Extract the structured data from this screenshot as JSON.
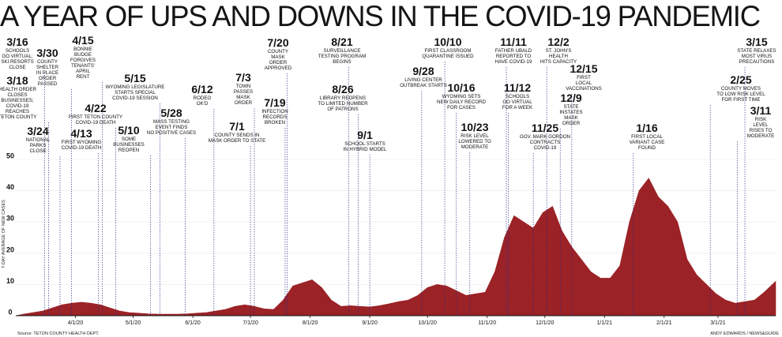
{
  "chart_data": {
    "type": "area",
    "title": "A YEAR OF UPS AND DOWNS IN THE COVID-19 PANDEMIC",
    "ylabel": "7-DAY AVERAGE OF NEW CASES",
    "ylim": [
      0,
      50
    ],
    "yticks": [
      0,
      10,
      20,
      30,
      40,
      50
    ],
    "xlim": [
      "2020-03-01",
      "2021-03-31"
    ],
    "xticks": [
      {
        "date": "2020-04-01",
        "label": "4/1/20"
      },
      {
        "date": "2020-05-01",
        "label": "5/1/20"
      },
      {
        "date": "2020-06-01",
        "label": "6/1/20"
      },
      {
        "date": "2020-07-01",
        "label": "7/1/20"
      },
      {
        "date": "2020-08-01",
        "label": "8/1/20"
      },
      {
        "date": "2020-09-01",
        "label": "9/1/20"
      },
      {
        "date": "2020-10-01",
        "label": "10/1/20"
      },
      {
        "date": "2020-11-01",
        "label": "11/1/20"
      },
      {
        "date": "2020-12-01",
        "label": "12/1/20"
      },
      {
        "date": "2021-01-01",
        "label": "1/1/21"
      },
      {
        "date": "2021-02-01",
        "label": "2/1/21"
      },
      {
        "date": "2021-03-01",
        "label": "3/1/21"
      }
    ],
    "fill_color": "#9b2226",
    "series": [
      {
        "x": [
          "2020-03-01",
          "2020-03-05",
          "2020-03-10",
          "2020-03-15",
          "2020-03-20",
          "2020-03-25",
          "2020-03-30",
          "2020-04-04",
          "2020-04-09",
          "2020-04-14",
          "2020-04-19",
          "2020-04-24",
          "2020-04-29",
          "2020-05-04",
          "2020-05-09",
          "2020-05-14",
          "2020-05-19",
          "2020-05-24",
          "2020-05-29",
          "2020-06-03",
          "2020-06-08",
          "2020-06-13",
          "2020-06-18",
          "2020-06-23",
          "2020-06-28",
          "2020-07-03",
          "2020-07-08",
          "2020-07-13",
          "2020-07-18",
          "2020-07-23",
          "2020-07-28",
          "2020-08-02",
          "2020-08-07",
          "2020-08-12",
          "2020-08-17",
          "2020-08-22",
          "2020-08-27",
          "2020-09-01",
          "2020-09-06",
          "2020-09-11",
          "2020-09-16",
          "2020-09-21",
          "2020-09-26",
          "2020-10-01",
          "2020-10-06",
          "2020-10-11",
          "2020-10-16",
          "2020-10-21",
          "2020-10-26",
          "2020-10-31",
          "2020-11-05",
          "2020-11-10",
          "2020-11-15",
          "2020-11-20",
          "2020-11-25",
          "2020-11-30",
          "2020-12-05",
          "2020-12-10",
          "2020-12-15",
          "2020-12-20",
          "2020-12-25",
          "2020-12-30",
          "2021-01-04",
          "2021-01-09",
          "2021-01-14",
          "2021-01-19",
          "2021-01-24",
          "2021-01-29",
          "2021-02-03",
          "2021-02-08",
          "2021-02-13",
          "2021-02-18",
          "2021-02-23",
          "2021-02-28",
          "2021-03-05",
          "2021-03-10",
          "2021-03-15",
          "2021-03-20",
          "2021-03-25",
          "2021-03-31"
        ],
        "values": [
          0,
          0.5,
          1,
          1.5,
          2.5,
          3.5,
          4,
          4.3,
          4,
          3.5,
          2.5,
          1.5,
          1,
          0.8,
          0.6,
          0.5,
          0.5,
          0.5,
          0.6,
          0.8,
          1,
          1.5,
          2,
          3,
          3.5,
          3,
          2.2,
          2,
          5,
          9.5,
          10.5,
          11.5,
          9,
          5,
          3,
          3.2,
          3,
          2.8,
          3.2,
          3.8,
          4.5,
          5,
          6.5,
          9,
          10,
          9.5,
          8,
          6.5,
          7,
          7.5,
          14,
          25,
          32,
          30,
          28,
          33,
          35,
          27,
          22,
          18,
          14,
          12,
          12,
          16,
          30,
          40,
          44,
          38,
          35,
          30,
          18,
          13,
          10,
          7,
          5,
          4,
          4.5,
          5,
          7.5,
          11
        ]
      }
    ],
    "annotations": [
      {
        "date": "3/16",
        "text": [
          "SCHOOLS",
          "GO VIRTUAL;",
          "SKI RESORTS",
          "CLOSE"
        ]
      },
      {
        "date": "3/18",
        "text": [
          "HEALTH ORDER",
          "CLOSES",
          "BUSINESSES;",
          "COVID-19",
          "REACHES",
          "TETON COUNTY"
        ]
      },
      {
        "date": "3/24",
        "text": [
          "NATIONAL",
          "PARKS",
          "CLOSE"
        ]
      },
      {
        "date": "3/30",
        "text": [
          "COUNTY",
          "SHELTER",
          "IN PLACE",
          "ORDER",
          "PASSED"
        ]
      },
      {
        "date": "4/13",
        "text": [
          "FIRST WYOMING",
          "COVID-19 DEATH"
        ]
      },
      {
        "date": "4/15",
        "text": [
          "BONNIE",
          "BUDGE",
          "FORGIVES",
          "TENANTS'",
          "APRIL",
          "RENT"
        ]
      },
      {
        "date": "4/22",
        "text": [
          "FIRST TETON COUNTY",
          "COVID-19 DEATH"
        ]
      },
      {
        "date": "5/10",
        "text": [
          "SOME",
          "BUSINESSES",
          "REOPEN"
        ]
      },
      {
        "date": "5/15",
        "text": [
          "WYOMING LEGISLATURE",
          "STARTS SPECIAL",
          "COVID-19 SESSION"
        ]
      },
      {
        "date": "5/28",
        "text": [
          "MASS TESTING",
          "EVENT FINDS",
          "NO POSITIVE CASES"
        ]
      },
      {
        "date": "6/12",
        "text": [
          "RODEO",
          "OK'D"
        ]
      },
      {
        "date": "7/1",
        "text": [
          "COUNTY SENDS IN",
          "MASK ORDER TO STATE"
        ]
      },
      {
        "date": "7/3",
        "text": [
          "TOWN",
          "PASSES",
          "MASK",
          "ORDER"
        ]
      },
      {
        "date": "7/19",
        "text": [
          "INFECTION",
          "RECORDS",
          "BROKEN"
        ]
      },
      {
        "date": "7/20",
        "text": [
          "COUNTY",
          "MASK",
          "ORDER",
          "APPROVED"
        ]
      },
      {
        "date": "8/21",
        "text": [
          "SURVEILLANCE",
          "TESTING PROGRAM",
          "BEGINS"
        ]
      },
      {
        "date": "8/26",
        "text": [
          "LIBRARY REOPENS",
          "TO LIMITED NUMBER",
          "OF PATRONS"
        ]
      },
      {
        "date": "9/1",
        "text": [
          "SCHOOL STARTS",
          "IN HYBRID MODEL"
        ]
      },
      {
        "date": "9/28",
        "text": [
          "LIVING CENTER",
          "OUTBREAK STARTS"
        ]
      },
      {
        "date": "10/10",
        "text": [
          "FIRST CLASSROOM",
          "QUARANTINE ISSUED"
        ]
      },
      {
        "date": "10/16",
        "text": [
          "WYOMING SETS",
          "NEW DAILY RECORD",
          "FOR CASES"
        ]
      },
      {
        "date": "10/23",
        "text": [
          "RISK LEVEL",
          "LOWERED TO",
          "MODERATE"
        ]
      },
      {
        "date": "11/11",
        "text": [
          "FATHER UBALD",
          "REPORTED TO",
          "HAVE COVID-19"
        ]
      },
      {
        "date": "11/12",
        "text": [
          "SCHOOLS",
          "GO VIRTUAL",
          "FOR A WEEK"
        ]
      },
      {
        "date": "11/25",
        "text": [
          "GOV. MARK GORDON",
          "CONTRACTS",
          "COVID-19"
        ]
      },
      {
        "date": "12/2",
        "text": [
          "ST. JOHN'S",
          "HEALTH",
          "HITS CAPACITY"
        ]
      },
      {
        "date": "12/9",
        "text": [
          "STATE",
          "INSTATES",
          "MASK",
          "ORDER"
        ]
      },
      {
        "date": "12/15",
        "text": [
          "FIRST",
          "LOCAL",
          "VACCINATIONS"
        ]
      },
      {
        "date": "1/16",
        "text": [
          "FIRST LOCAL",
          "VARIANT CASE",
          "FOUND"
        ]
      },
      {
        "date": "2/25",
        "text": [
          "COUNTY MOVES",
          "TO LOW RISK LEVEL",
          "FOR FIRST TIME"
        ]
      },
      {
        "date": "3/11",
        "text": [
          "RISK",
          "LEVEL",
          "RISES TO",
          "MODERATE"
        ]
      },
      {
        "date": "3/15",
        "text": [
          "STATE RELAXES",
          "MOST VIRUS",
          "PRECAUTIONS"
        ]
      }
    ],
    "source": "Source: TETON COUNTY HEALTH DEPT.",
    "credit": "ANDY EDWARDS / NEWS&GUIDE"
  }
}
